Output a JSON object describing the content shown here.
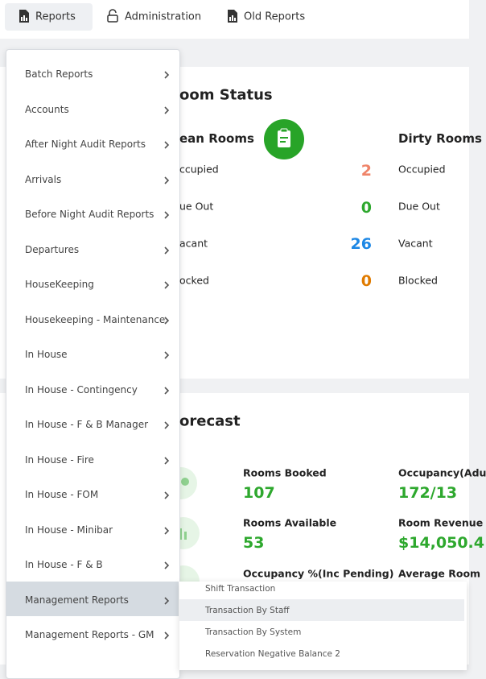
{
  "nav": {
    "tabs": [
      "Reports",
      "Administration",
      "Old Reports"
    ]
  },
  "menu": {
    "items": [
      "Batch Reports",
      "Accounts",
      "After Night Audit Reports",
      "Arrivals",
      "Before Night Audit Reports",
      "Departures",
      "HouseKeeping",
      "Housekeeping - Maintenance",
      "In House",
      "In House - Contingency",
      "In House - F & B Manager",
      "In House - Fire",
      "In House - FOM",
      "In House - Minibar",
      "In House - F & B",
      "Management Reports",
      "Management Reports - GM"
    ]
  },
  "submenu": {
    "items": [
      "Shift Transaction",
      "Transaction By Staff",
      "Transaction By System",
      "Reservation Negative Balance 2"
    ]
  },
  "room_status": {
    "title": "oom Status",
    "clean": {
      "title": "ean Rooms",
      "rows": [
        {
          "label": "ccupied",
          "value": 2
        },
        {
          "label": "ue Out",
          "value": 0
        },
        {
          "label": "acant",
          "value": 26
        },
        {
          "label": "ocked",
          "value": 0
        }
      ]
    },
    "dirty": {
      "title": "Dirty Rooms",
      "rows": [
        "Occupied",
        "Due Out",
        "Vacant",
        "Blocked"
      ]
    }
  },
  "forecast": {
    "title": "orecast",
    "left": [
      {
        "label": "Rooms Booked",
        "value": 107
      },
      {
        "label": "Rooms Available",
        "value": 53
      },
      {
        "label": "Occupancy %(Inc Pending)"
      }
    ],
    "right": [
      {
        "label": "Occupancy(Adu",
        "value": "172/13"
      },
      {
        "label": "Room Revenue",
        "value": "$14,050.4"
      },
      {
        "label": "Average Room"
      }
    ]
  }
}
